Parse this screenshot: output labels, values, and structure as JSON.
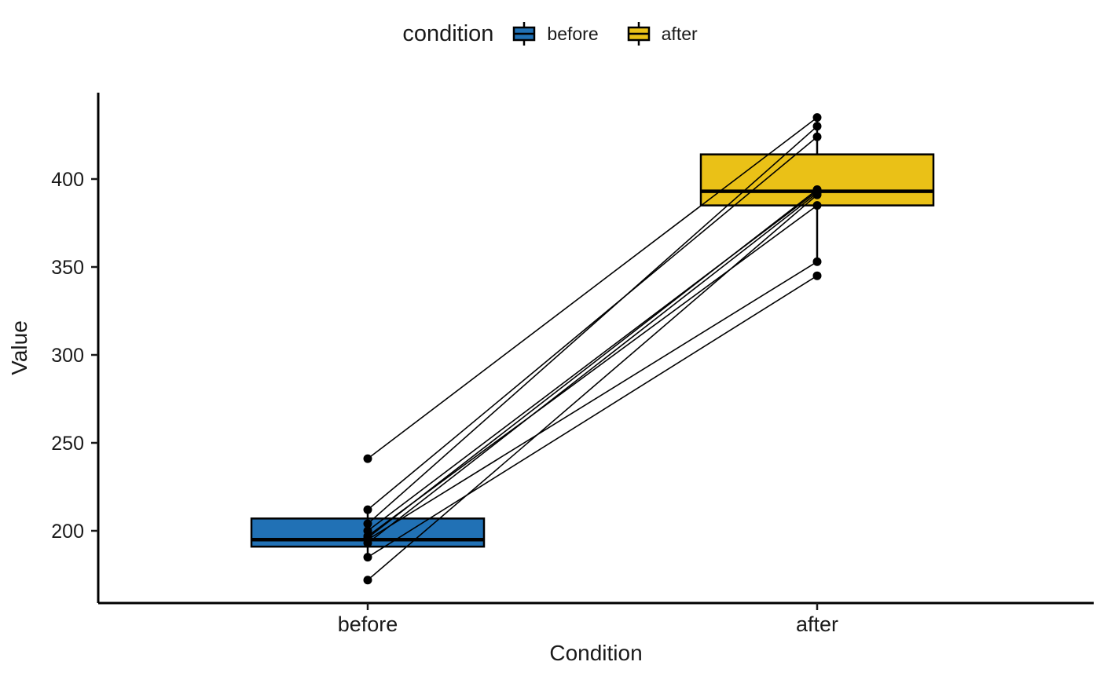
{
  "chart_data": {
    "type": "paired-boxplot",
    "title": "",
    "xlabel": "Condition",
    "ylabel": "Value",
    "categories": [
      "before",
      "after"
    ],
    "legend": {
      "title": "condition",
      "position": "top"
    },
    "colors": {
      "before": "#2171B5",
      "after": "#EAC117"
    },
    "point_color": "#000000",
    "line_color": "#000000",
    "yticks": [
      200,
      250,
      300,
      350,
      400
    ],
    "ylim": [
      160,
      448
    ],
    "boxes": [
      {
        "category": "before",
        "whisker_low": 185,
        "q1": 191,
        "median": 195,
        "q3": 207,
        "whisker_high": 212
      },
      {
        "category": "after",
        "whisker_low": 353,
        "q1": 385,
        "median": 393,
        "q3": 414,
        "whisker_high": 435
      }
    ],
    "pairs": [
      {
        "before": 241,
        "after": 435
      },
      {
        "before": 212,
        "after": 424
      },
      {
        "before": 204,
        "after": 430
      },
      {
        "before": 200,
        "after": 393
      },
      {
        "before": 197,
        "after": 385
      },
      {
        "before": 196,
        "after": 394
      },
      {
        "before": 195,
        "after": 353
      },
      {
        "before": 193,
        "after": 392
      },
      {
        "before": 185,
        "after": 345
      },
      {
        "before": 172,
        "after": 391
      }
    ]
  }
}
